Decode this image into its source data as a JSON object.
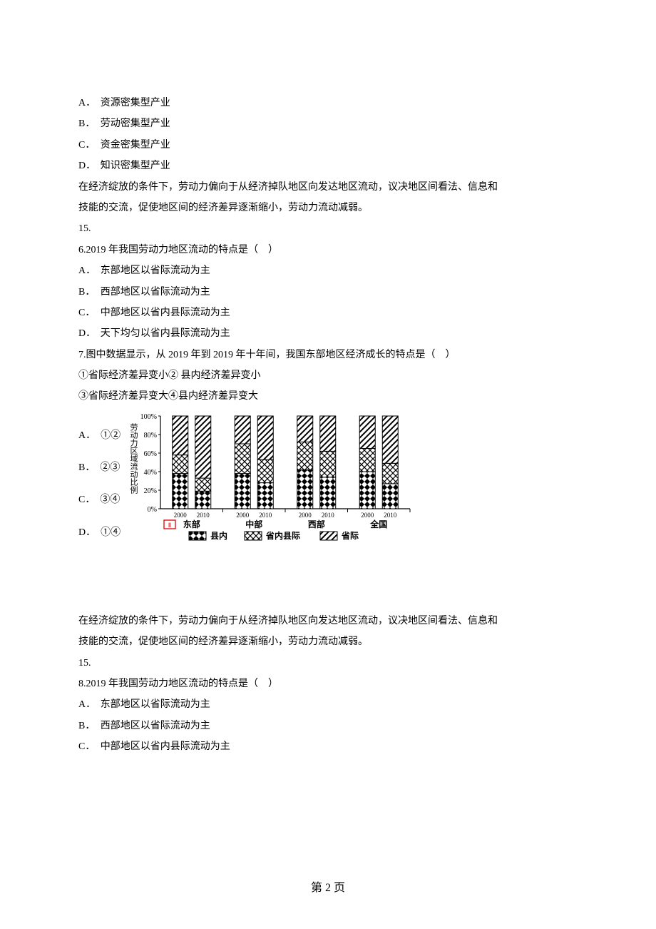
{
  "q5": {
    "options": {
      "A": "资源密集型产业",
      "B": "劳动密集型产业",
      "C": "资金密集型产业",
      "D": "知识密集型产业"
    }
  },
  "passage1": {
    "p1": "在经济绽放的条件下，劳动力偏向于从经济掉队地区向发达地区流动，议决地区间看法、信息和",
    "p2": "技能的交流，促使地区间的经济差异逐渐缩小，劳动力流动减弱。",
    "p3": "15."
  },
  "q6": {
    "stem": "6.2019 年我国劳动力地区流动的特点是（　）",
    "options": {
      "A": "东部地区以省际流动为主",
      "B": "西部地区以省际流动为主",
      "C": "中部地区以省内县际流动为主",
      "D": "天下均匀以省内县际流动为主"
    }
  },
  "q7": {
    "stem": "7.图中数据显示，从 2019 年到 2019 年十年间，我国东部地区经济成长的特点是（　）",
    "s1": "①省际经济差异变小② 县内经济差异变小",
    "s2": "③省际经济差异变大④县内经济差异变大",
    "options": {
      "A": "①②",
      "B": "②③",
      "C": "③④",
      "D": "①④"
    }
  },
  "chart": {
    "y_label": "劳动力区域流动比例",
    "y_ticks": [
      "100%",
      "80%",
      "60%",
      "40%",
      "20%",
      "0%"
    ],
    "groups": [
      "东部",
      "中部",
      "西部",
      "全国"
    ],
    "x_sublabels": [
      "2000",
      "2010"
    ],
    "legend": [
      "县内",
      "省内县际",
      "省际"
    ],
    "series": {
      "east": {
        "2000": {
          "a": 38,
          "b": 20,
          "c": 42
        },
        "2010": {
          "a": 19,
          "b": 14,
          "c": 67
        }
      },
      "center": {
        "2000": {
          "a": 38,
          "b": 32,
          "c": 30
        },
        "2010": {
          "a": 28,
          "b": 25,
          "c": 47
        }
      },
      "west": {
        "2000": {
          "a": 42,
          "b": 30,
          "c": 28
        },
        "2010": {
          "a": 34,
          "b": 28,
          "c": 38
        }
      },
      "nation": {
        "2000": {
          "a": 40,
          "b": 25,
          "c": 35
        },
        "2010": {
          "a": 27,
          "b": 22,
          "c": 51
        }
      }
    },
    "colors": {
      "black": "#000000",
      "white": "#ffffff"
    }
  },
  "passage2": {
    "p1": "在经济绽放的条件下，劳动力偏向于从经济掉队地区向发达地区流动，议决地区间看法、信息和",
    "p2": "技能的交流，促使地区间的经济差异逐渐缩小，劳动力流动减弱。",
    "p3": "15."
  },
  "q8": {
    "stem": "8.2019 年我国劳动力地区流动的特点是（　）",
    "options": {
      "A": "东部地区以省际流动为主",
      "B": "西部地区以省际流动为主",
      "C": "中部地区以省内县际流动为主"
    }
  },
  "footer": "第 2  页"
}
